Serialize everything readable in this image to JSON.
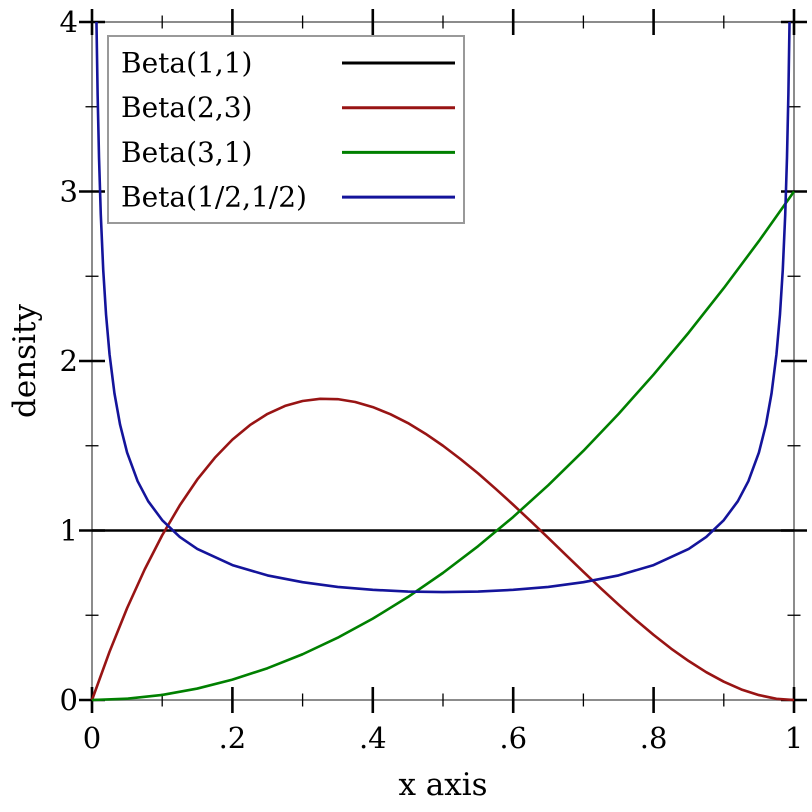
{
  "chart_data": {
    "type": "line",
    "title": "",
    "xlabel": "x axis",
    "ylabel": "density",
    "xlim": [
      0,
      1
    ],
    "ylim": [
      0,
      4
    ],
    "grid": false,
    "legend_position": "top-left",
    "axis_color": "#808080",
    "tick_color": "#000000",
    "background": "#ffffff",
    "x_ticks": {
      "major_values": [
        0,
        0.2,
        0.4,
        0.6,
        0.8,
        1
      ],
      "major_labels": [
        "0",
        ".2",
        ".4",
        ".6",
        ".8",
        "1"
      ],
      "minor_values": [
        0.1,
        0.3,
        0.5,
        0.7,
        0.9
      ]
    },
    "y_ticks": {
      "major_values": [
        0,
        1,
        2,
        3,
        4
      ],
      "major_labels": [
        "0",
        "1",
        "2",
        "3",
        "4"
      ],
      "minor_values": [
        0.5,
        1.5,
        2.5,
        3.5
      ]
    },
    "series": [
      {
        "name": "Beta(1,1)",
        "color": "#000000",
        "x": [
          0,
          1
        ],
        "y": [
          1,
          1
        ]
      },
      {
        "name": "Beta(2,3)",
        "color": "#981414",
        "x": [
          0,
          0.025,
          0.05,
          0.075,
          0.1,
          0.125,
          0.15,
          0.175,
          0.2,
          0.225,
          0.25,
          0.275,
          0.3,
          0.325,
          0.35,
          0.375,
          0.4,
          0.425,
          0.45,
          0.475,
          0.5,
          0.525,
          0.55,
          0.575,
          0.6,
          0.625,
          0.65,
          0.675,
          0.7,
          0.725,
          0.75,
          0.775,
          0.8,
          0.825,
          0.85,
          0.875,
          0.9,
          0.925,
          0.95,
          0.975,
          1
        ],
        "y": [
          0,
          0.285,
          0.542,
          0.77,
          0.972,
          1.148,
          1.301,
          1.429,
          1.536,
          1.622,
          1.688,
          1.735,
          1.764,
          1.777,
          1.775,
          1.758,
          1.728,
          1.686,
          1.634,
          1.571,
          1.5,
          1.421,
          1.337,
          1.246,
          1.152,
          1.055,
          0.956,
          0.856,
          0.756,
          0.658,
          0.563,
          0.471,
          0.384,
          0.303,
          0.23,
          0.164,
          0.108,
          0.062,
          0.029,
          0.007,
          0
        ]
      },
      {
        "name": "Beta(3,1)",
        "color": "#008000",
        "x": [
          0,
          0.05,
          0.1,
          0.15,
          0.2,
          0.25,
          0.3,
          0.35,
          0.4,
          0.45,
          0.5,
          0.55,
          0.6,
          0.65,
          0.7,
          0.75,
          0.8,
          0.85,
          0.9,
          0.95,
          1
        ],
        "y": [
          0,
          0.0075,
          0.03,
          0.0675,
          0.12,
          0.1875,
          0.27,
          0.3675,
          0.48,
          0.6075,
          0.75,
          0.9075,
          1.08,
          1.2675,
          1.47,
          1.6875,
          1.92,
          2.1675,
          2.43,
          2.7075,
          3
        ]
      },
      {
        "name": "Beta(1/2,1/2)",
        "color": "#14149b",
        "x": [
          0.00637,
          0.008,
          0.01,
          0.0125,
          0.016,
          0.02,
          0.025,
          0.032,
          0.04,
          0.05,
          0.065,
          0.08,
          0.1,
          0.125,
          0.15,
          0.2,
          0.25,
          0.3,
          0.35,
          0.4,
          0.45,
          0.5,
          0.55,
          0.6,
          0.65,
          0.7,
          0.75,
          0.8,
          0.85,
          0.875,
          0.9,
          0.92,
          0.935,
          0.95,
          0.96,
          0.968,
          0.975,
          0.98,
          0.984,
          0.9875,
          0.99,
          0.992,
          0.99363
        ],
        "y": [
          4,
          3.573,
          3.199,
          2.865,
          2.537,
          2.274,
          2.039,
          1.809,
          1.624,
          1.46,
          1.291,
          1.173,
          1.061,
          0.962,
          0.891,
          0.796,
          0.735,
          0.695,
          0.667,
          0.65,
          0.64,
          0.637,
          0.64,
          0.65,
          0.667,
          0.695,
          0.735,
          0.796,
          0.891,
          0.962,
          1.061,
          1.173,
          1.291,
          1.46,
          1.624,
          1.809,
          2.039,
          2.274,
          2.537,
          2.865,
          3.199,
          3.573,
          4
        ]
      }
    ]
  }
}
